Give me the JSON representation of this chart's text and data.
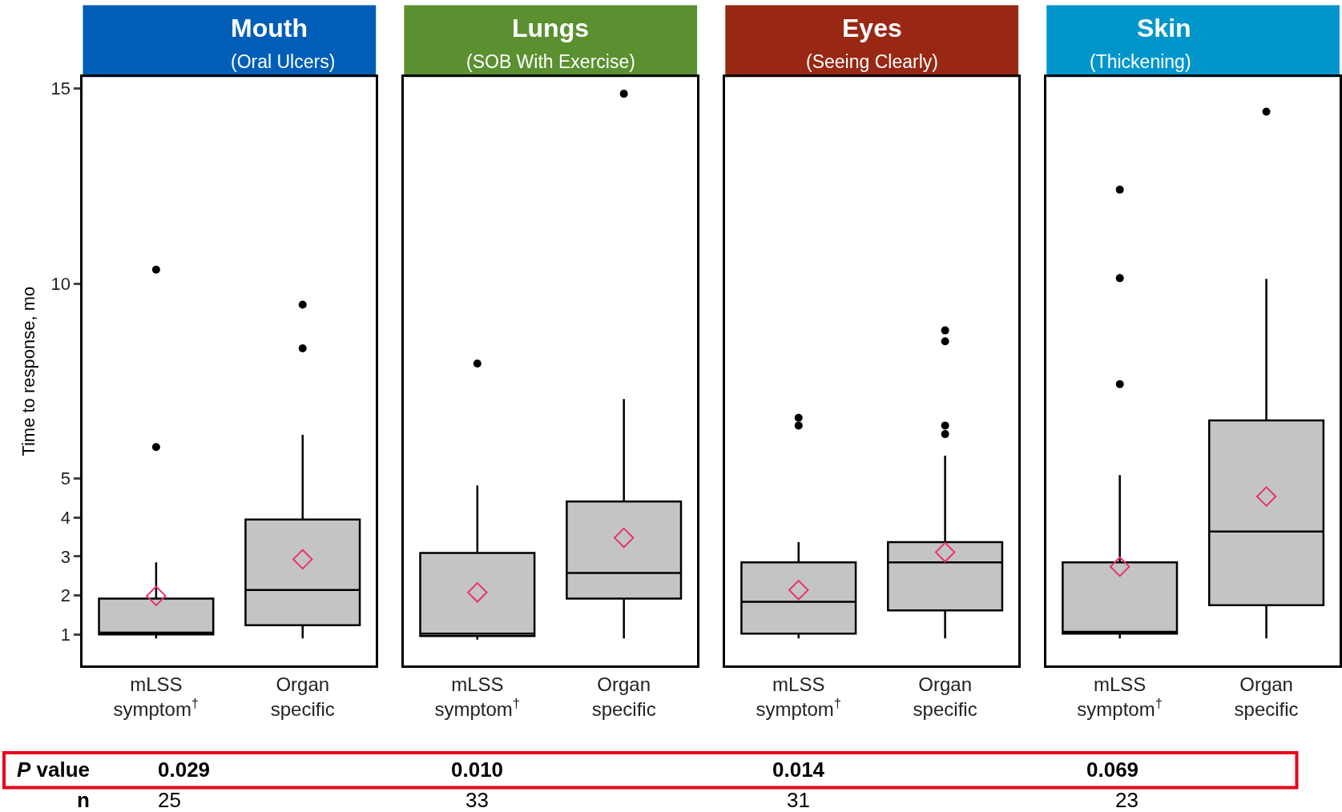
{
  "chart_data": [
    {
      "type": "box",
      "title": "Mouth",
      "subtitle": "(Oral Ulcers)",
      "ylabel": "Time to response, mo",
      "categories": [
        "mLSS symptom$^{†}$",
        "Organ specific"
      ],
      "ylim": [
        0.2,
        15.3
      ],
      "yticks": [
        1,
        2,
        3,
        4,
        5,
        10,
        15
      ],
      "series": [
        {
          "color": "#c4c4c4",
          "boxes": [
            {
              "low": 0.9,
              "q1": 1.0,
              "median": 1.05,
              "q3": 1.92,
              "high": 2.85,
              "mean": 1.99,
              "outliers": [
                5.81,
                10.36
              ]
            },
            {
              "low": 0.9,
              "q1": 1.24,
              "median": 2.14,
              "q3": 3.95,
              "high": 6.12,
              "mean": 2.93,
              "outliers": [
                8.34,
                9.46
              ]
            }
          ]
        }
      ],
      "annotations": [
        "P value",
        "n",
        "0.029",
        "25"
      ]
    },
    {
      "type": "box",
      "title": "Lungs",
      "subtitle": "(SOB With Exercise)",
      "categories": [
        "mLSS symptom$^{†}$",
        "Organ specific"
      ],
      "ylim": [
        0.2,
        15.3
      ],
      "tick_labels": "x",
      "series": [
        {
          "color": "#c4c4c4",
          "boxes": [
            {
              "low": 0.87,
              "q1": 0.96,
              "median": 1.02,
              "q3": 3.09,
              "high": 4.82,
              "mean": 2.08,
              "outliers": [
                7.95
              ]
            },
            {
              "low": 0.9,
              "q1": 1.92,
              "median": 2.58,
              "q3": 4.41,
              "high": 7.04,
              "mean": 3.48,
              "outliers": [
                14.87
              ]
            }
          ]
        }
      ],
      "annotations": [
        "0.010",
        "33"
      ]
    },
    {
      "type": "box",
      "title": "Eyes",
      "subtitle": "(Seeing Clearly)",
      "categories": [
        "mLSS symptom$^{†}$",
        "Organ specific"
      ],
      "ylim": [
        0.2,
        15.3
      ],
      "tick_labels": "x",
      "series": [
        {
          "color": "#c4c4c4",
          "boxes": [
            {
              "low": 0.9,
              "q1": 1.02,
              "median": 1.84,
              "q3": 2.85,
              "high": 3.37,
              "mean": 2.14,
              "outliers": [
                6.36,
                6.56
              ]
            },
            {
              "low": 0.9,
              "q1": 1.62,
              "median": 2.85,
              "q3": 3.37,
              "high": 5.59,
              "mean": 3.11,
              "outliers": [
                6.14,
                6.36,
                8.52,
                8.8
              ]
            }
          ]
        }
      ],
      "annotations": [
        "0.014",
        "31"
      ]
    },
    {
      "type": "box",
      "title": "Skin",
      "subtitle": "(Thickening)",
      "categories": [
        "mLSS symptom$^{†}$",
        "Organ specific"
      ],
      "ylim": [
        0.2,
        15.3
      ],
      "tick_labels": "x",
      "series": [
        {
          "color": "#c4c4c4",
          "boxes": [
            {
              "low": 0.9,
              "q1": 1.02,
              "median": 1.07,
              "q3": 2.85,
              "high": 5.09,
              "mean": 2.74,
              "outliers": [
                7.42,
                10.14,
                12.41
              ]
            },
            {
              "low": 0.9,
              "q1": 1.75,
              "median": 3.64,
              "q3": 6.49,
              "high": 10.12,
              "mean": 4.54,
              "outliers": [
                14.41
              ]
            }
          ]
        }
      ],
      "annotations": [
        "0.069",
        "23"
      ]
    }
  ]
}
